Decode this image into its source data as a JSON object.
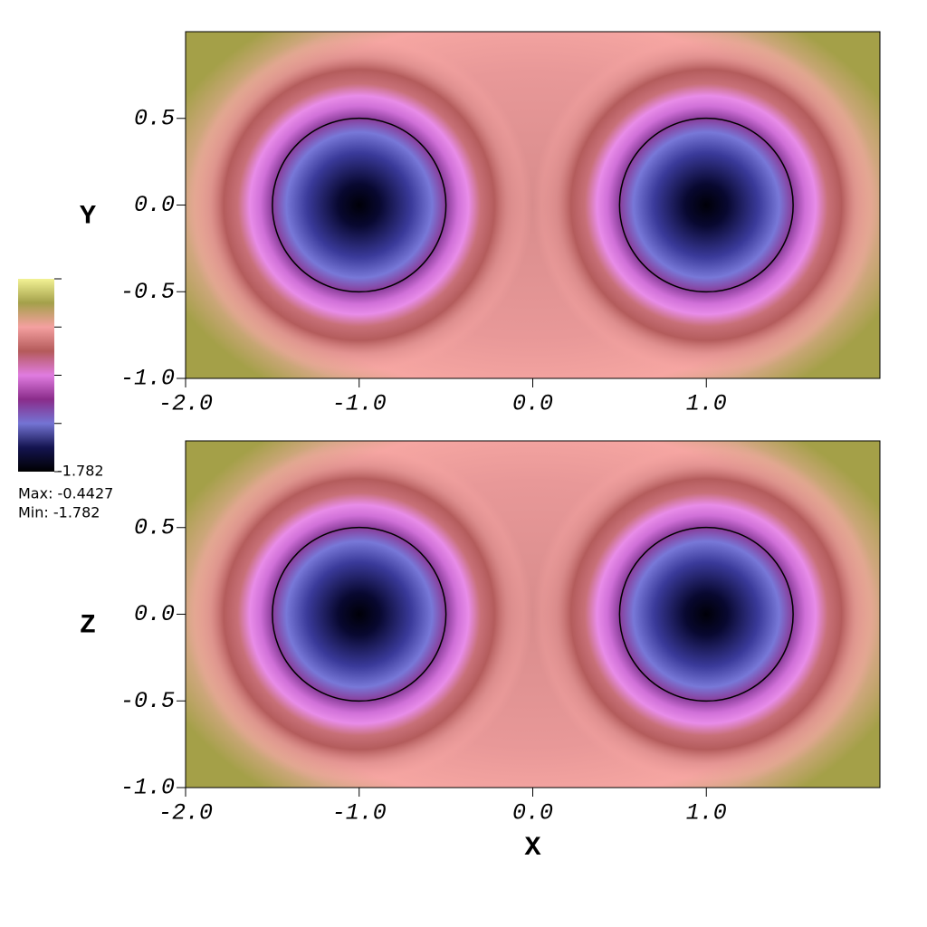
{
  "chart_data": [
    {
      "type": "heatmap",
      "y_label": "Y",
      "xlim": [
        -2,
        2
      ],
      "ylim": [
        -1,
        1
      ],
      "xticks": [
        {
          "value": -2,
          "label": "-2.0"
        },
        {
          "value": -1,
          "label": "-1.0"
        },
        {
          "value": 0,
          "label": "0.0"
        },
        {
          "value": 1,
          "label": "1.0"
        }
      ],
      "yticks": [
        {
          "value": -1,
          "label": "-1.0"
        },
        {
          "value": -0.5,
          "label": "-0.5"
        },
        {
          "value": 0,
          "label": "0.0"
        },
        {
          "value": 0.5,
          "label": "0.5"
        }
      ],
      "contours": [
        {
          "cx": -1,
          "cy": 0,
          "r": 0.5
        },
        {
          "cx": 1,
          "cy": 0,
          "r": 0.5
        }
      ]
    },
    {
      "type": "heatmap",
      "y_label": "Z",
      "x_label": "X",
      "xlim": [
        -2,
        2
      ],
      "ylim": [
        -1,
        1
      ],
      "xticks": [
        {
          "value": -2,
          "label": "-2.0"
        },
        {
          "value": -1,
          "label": "-1.0"
        },
        {
          "value": 0,
          "label": "0.0"
        },
        {
          "value": 1,
          "label": "1.0"
        }
      ],
      "yticks": [
        {
          "value": -1,
          "label": "-1.0"
        },
        {
          "value": -0.5,
          "label": "-0.5"
        },
        {
          "value": 0,
          "label": "0.0"
        },
        {
          "value": 0.5,
          "label": "0.5"
        }
      ],
      "contours": [
        {
          "cx": -1,
          "cy": 0,
          "r": 0.5
        },
        {
          "cx": 1,
          "cy": 0,
          "r": 0.5
        }
      ]
    }
  ],
  "colorbar": {
    "colors": [
      "#f2f294",
      "#a4a04a",
      "#f4a0a0",
      "#b45a5a",
      "#e07ce0",
      "#8a2c8a",
      "#7474d4",
      "#141450",
      "#000000"
    ],
    "ticks": [
      {
        "value": -1.782,
        "label": "-1.782"
      }
    ],
    "max": {
      "value": -0.4427,
      "label": "Max: -0.4427"
    },
    "min": {
      "value": -1.782,
      "label": "Min: -1.782"
    }
  }
}
